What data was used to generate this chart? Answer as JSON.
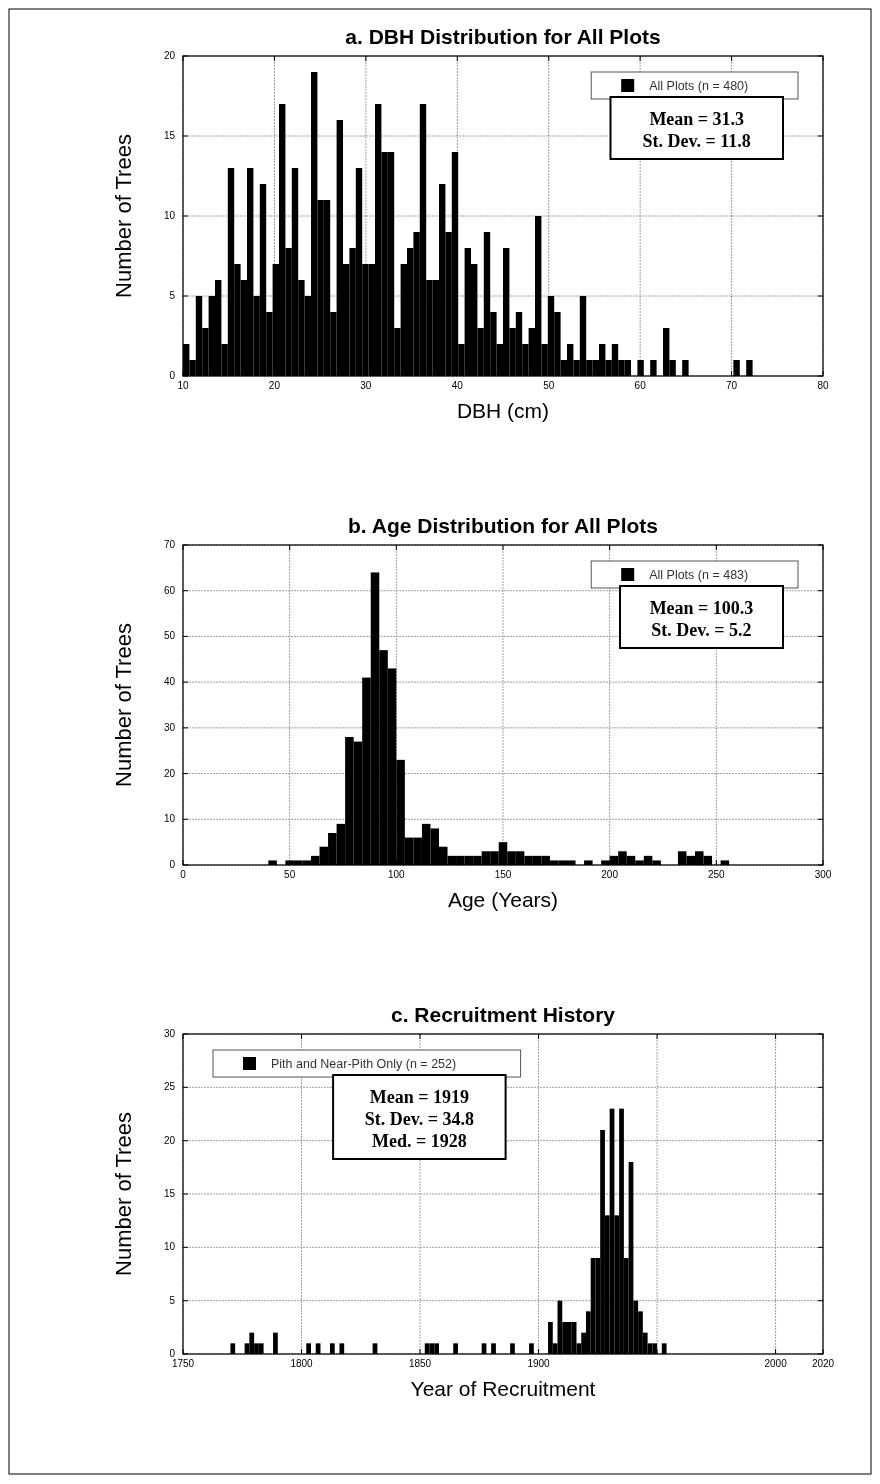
{
  "chart_data": [
    {
      "type": "histogram",
      "title": "a. DBH Distribution for All Plots",
      "xlabel": "DBH (cm)",
      "ylabel": "Number of Trees",
      "bins": [
        10,
        10.7,
        11.4,
        12.1,
        12.8,
        13.5,
        14.2,
        14.9,
        15.6,
        16.3,
        17,
        17.7,
        18.4,
        19.1,
        19.8,
        20.5,
        21.2,
        21.9,
        22.6,
        23.3,
        24,
        24.7,
        25.4,
        26.1,
        26.8,
        27.5,
        28.2,
        28.9,
        29.6,
        30.3,
        31,
        31.7,
        32.4,
        33.1,
        33.8,
        34.5,
        35.2,
        35.9,
        36.6,
        37.3,
        38,
        38.7,
        39.4,
        40.1,
        40.8,
        41.5,
        42.2,
        42.9,
        43.6,
        44.3,
        45,
        45.7,
        46.4,
        47.1,
        47.8,
        48.5,
        49.2,
        49.9,
        50.6,
        51.3,
        52,
        52.7,
        53.4,
        54.1,
        54.8,
        55.5,
        56.2,
        56.9,
        57.6,
        58.3,
        59,
        59.7,
        60.4,
        61.1,
        61.8,
        62.5,
        63.2,
        63.9,
        64.6,
        65.3,
        66,
        66.7,
        67.4,
        68.1,
        68.8,
        69.5,
        70.2,
        70.9,
        71.6,
        72.3
      ],
      "series": [
        {
          "name": "All Plots (n = 480)",
          "color": "#000000",
          "values": [
            2,
            1,
            5,
            3,
            5,
            6,
            2,
            13,
            7,
            6,
            13,
            5,
            12,
            4,
            7,
            17,
            8,
            13,
            6,
            5,
            19,
            11,
            11,
            4,
            16,
            7,
            8,
            13,
            7,
            7,
            17,
            14,
            14,
            3,
            7,
            8,
            9,
            17,
            6,
            6,
            12,
            9,
            14,
            2,
            8,
            7,
            3,
            9,
            4,
            2,
            8,
            3,
            4,
            2,
            3,
            10,
            2,
            5,
            4,
            1,
            2,
            1,
            5,
            1,
            1,
            2,
            1,
            2,
            1,
            1,
            0,
            1,
            0,
            1,
            0,
            3,
            1,
            0,
            1,
            0,
            0,
            0,
            0,
            0,
            0,
            0,
            1,
            0,
            1
          ]
        }
      ],
      "xlim": [
        10,
        80
      ],
      "xticks": [
        10,
        20,
        30,
        40,
        50,
        60,
        70,
        80
      ],
      "ylim": [
        0,
        20
      ],
      "yticks": [
        0,
        5,
        10,
        15,
        20
      ],
      "grid": true,
      "legend": "top right",
      "annotations": [
        "Mean = 31.3",
        "St. Dev. = 11.8"
      ]
    },
    {
      "type": "histogram",
      "title": "b. Age Distribution for All Plots",
      "xlabel": "Age (Years)",
      "ylabel": "Number of Trees",
      "bins": [
        40,
        44,
        48,
        52,
        56,
        60,
        64,
        68,
        72,
        76,
        80,
        84,
        88,
        92,
        96,
        100,
        104,
        108,
        112,
        116,
        120,
        124,
        128,
        132,
        136,
        140,
        144,
        148,
        152,
        156,
        160,
        164,
        168,
        172,
        176,
        180,
        184,
        188,
        192,
        196,
        200,
        204,
        208,
        212,
        216,
        220,
        224,
        228,
        232,
        236,
        240,
        244,
        248,
        252,
        256
      ],
      "series": [
        {
          "name": "All Plots (n = 483)",
          "color": "#000000",
          "values": [
            1,
            0,
            1,
            1,
            1,
            2,
            4,
            7,
            9,
            28,
            27,
            41,
            64,
            47,
            43,
            23,
            6,
            6,
            9,
            8,
            4,
            2,
            2,
            2,
            2,
            3,
            3,
            5,
            3,
            3,
            2,
            2,
            2,
            1,
            1,
            1,
            0,
            1,
            0,
            1,
            2,
            3,
            2,
            1,
            2,
            1,
            0,
            0,
            3,
            2,
            3,
            2,
            0,
            1
          ]
        }
      ],
      "xlim": [
        0,
        300
      ],
      "xticks": [
        0,
        50,
        100,
        150,
        200,
        250,
        300
      ],
      "ylim": [
        0,
        70
      ],
      "yticks": [
        0,
        10,
        20,
        30,
        40,
        50,
        60,
        70
      ],
      "grid": true,
      "legend": "top right",
      "annotations": [
        "Mean = 100.3",
        "St. Dev. = 5.2"
      ]
    },
    {
      "type": "histogram",
      "title": "c. Recruitment History",
      "xlabel": "Year of Recruitment",
      "ylabel": "Number of Trees",
      "bins": [
        1768,
        1770,
        1772,
        1774,
        1776,
        1778,
        1780,
        1782,
        1784,
        1786,
        1788,
        1790,
        1792,
        1794,
        1796,
        1798,
        1800,
        1802,
        1804,
        1806,
        1808,
        1810,
        1812,
        1814,
        1816,
        1818,
        1820,
        1822,
        1824,
        1826,
        1828,
        1830,
        1832,
        1834,
        1836,
        1838,
        1840,
        1842,
        1844,
        1846,
        1848,
        1850,
        1852,
        1854,
        1856,
        1858,
        1860,
        1862,
        1864,
        1866,
        1868,
        1870,
        1872,
        1874,
        1876,
        1878,
        1880,
        1882,
        1884,
        1886,
        1888,
        1890,
        1892,
        1894,
        1896,
        1898,
        1900,
        1902,
        1904,
        1906,
        1908,
        1910,
        1912,
        1914,
        1916,
        1918,
        1920,
        1922,
        1924,
        1926,
        1928,
        1930,
        1932,
        1934,
        1936,
        1938,
        1940,
        1942,
        1944,
        1946,
        1948,
        1950,
        1952,
        1954
      ],
      "series": [
        {
          "name": "Pith and Near-Pith Only (n = 252)",
          "color": "#000000",
          "values": [
            0,
            1,
            0,
            0,
            1,
            2,
            1,
            1,
            0,
            0,
            2,
            0,
            0,
            0,
            0,
            0,
            0,
            1,
            0,
            1,
            0,
            0,
            1,
            0,
            1,
            0,
            0,
            0,
            0,
            0,
            0,
            1,
            0,
            0,
            0,
            0,
            0,
            0,
            0,
            0,
            0,
            0,
            1,
            1,
            1,
            0,
            0,
            0,
            1,
            0,
            0,
            0,
            0,
            0,
            1,
            0,
            1,
            0,
            0,
            0,
            1,
            0,
            0,
            0,
            1,
            0,
            0,
            0,
            3,
            1,
            5,
            3,
            3,
            3,
            1,
            2,
            4,
            9,
            9,
            21,
            13,
            23,
            13,
            23,
            9,
            18,
            5,
            4,
            2,
            1,
            1,
            0,
            1
          ]
        }
      ],
      "xlim": [
        1750,
        2020
      ],
      "xticks": [
        1750,
        1800,
        1850,
        1900,
        {
          "value": 1950,
          "label": null
        },
        2000,
        2020
      ],
      "ylim": [
        0,
        30
      ],
      "yticks": [
        0,
        5,
        10,
        15,
        20,
        25,
        30
      ],
      "grid": true,
      "legend": "top left",
      "annotations": [
        "Mean = 1919",
        "St. Dev. = 34.8",
        "Med. = 1928"
      ]
    }
  ]
}
